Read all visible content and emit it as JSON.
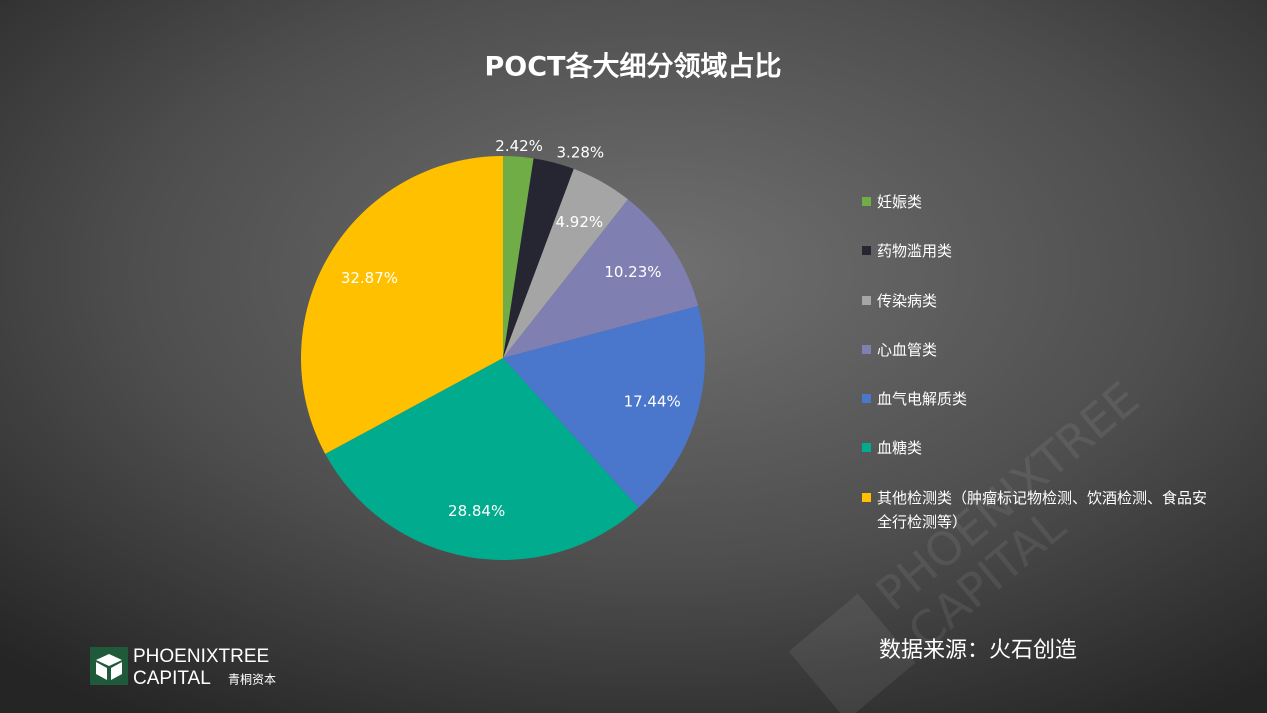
{
  "chart_data": {
    "type": "pie",
    "title": "POCT各大细分领域占比",
    "categories": [
      "妊娠类",
      "药物滥用类",
      "传染病类",
      "心血管类",
      "血气电解质类",
      "血糖类",
      "其他检测类（肿瘤标记物检测、饮酒检测、食品安全行检测等）"
    ],
    "values": [
      2.42,
      3.28,
      4.92,
      10.23,
      17.44,
      28.84,
      32.87
    ],
    "value_labels": [
      "2.42%",
      "3.28%",
      "4.92%",
      "10.23%",
      "17.44%",
      "28.84%",
      "32.87%"
    ],
    "colors": [
      "#70ad47",
      "#262632",
      "#a5a5a5",
      "#7f7fb2",
      "#4a76cc",
      "#00ab8e",
      "#ffc000"
    ],
    "legend": "right",
    "source": "数据来源：火石创造"
  },
  "logo": {
    "name": "PHOENIXTREE",
    "suffix": "CAPITAL",
    "chinese": "青桐资本"
  }
}
